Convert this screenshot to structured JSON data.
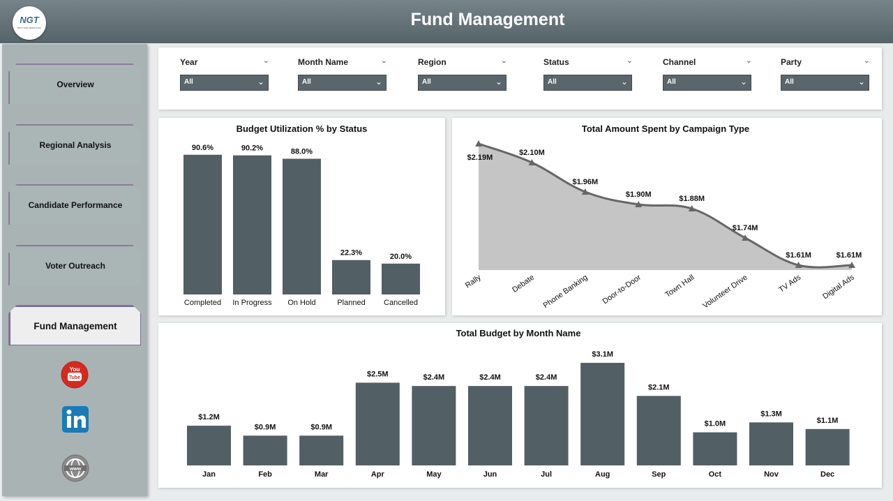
{
  "header": {
    "title": "Fund Management",
    "logo_text": "NGT",
    "logo_subtext": "NEXT GEN TEMPLATES"
  },
  "sidebar": {
    "items": [
      {
        "label": "Overview"
      },
      {
        "label": "Regional Analysis"
      },
      {
        "label": "Candidate Performance"
      },
      {
        "label": "Voter Outreach"
      },
      {
        "label": "Fund Management",
        "active": true
      }
    ],
    "social": [
      "youtube-icon",
      "linkedin-icon",
      "www-globe-icon"
    ]
  },
  "filters": [
    {
      "label": "Year",
      "value": "All"
    },
    {
      "label": "Month Name",
      "value": "All"
    },
    {
      "label": "Region",
      "value": "All"
    },
    {
      "label": "Status",
      "value": "All"
    },
    {
      "label": "Channel",
      "value": "All"
    },
    {
      "label": "Party",
      "value": "All"
    }
  ],
  "colors": {
    "bar": "#525f64",
    "area": "#c5c5c5",
    "line": "#666666",
    "header": "#5f6d72",
    "sidebar": "#a9b3b4"
  },
  "chart_data": [
    {
      "type": "bar",
      "title": "Budget Utilization % by Status",
      "categories": [
        "Completed",
        "In Progress",
        "On Hold",
        "Planned",
        "Cancelled"
      ],
      "values": [
        90.6,
        90.2,
        88.0,
        22.3,
        20.0
      ],
      "labels": [
        "90.6%",
        "90.2%",
        "88.0%",
        "22.3%",
        "20.0%"
      ],
      "ylim": [
        0,
        100
      ]
    },
    {
      "type": "area",
      "title": "Total Amount Spent by Campaign Type",
      "categories": [
        "Rally",
        "Debate",
        "Phone Banking",
        "Door-to-Door",
        "Town Hall",
        "Volunteer Drive",
        "TV Ads",
        "Digital Ads"
      ],
      "values": [
        2.19,
        2.1,
        1.96,
        1.9,
        1.88,
        1.74,
        1.61,
        1.61
      ],
      "labels": [
        "$2.19M",
        "$2.10M",
        "$1.96M",
        "$1.90M",
        "$1.88M",
        "$1.74M",
        "$1.61M",
        "$1.61M"
      ],
      "ylim": [
        1.6,
        2.2
      ]
    },
    {
      "type": "bar",
      "title": "Total Budget by Month Name",
      "categories": [
        "Jan",
        "Feb",
        "Mar",
        "Apr",
        "May",
        "Jun",
        "Jul",
        "Aug",
        "Sep",
        "Oct",
        "Nov",
        "Dec"
      ],
      "values": [
        1.2,
        0.9,
        0.9,
        2.5,
        2.4,
        2.4,
        2.4,
        3.1,
        2.1,
        1.0,
        1.3,
        1.1
      ],
      "labels": [
        "$1.2M",
        "$0.9M",
        "$0.9M",
        "$2.5M",
        "$2.4M",
        "$2.4M",
        "$2.4M",
        "$3.1M",
        "$2.1M",
        "$1.0M",
        "$1.3M",
        "$1.1M"
      ],
      "ylim": [
        0,
        3.1
      ]
    }
  ]
}
